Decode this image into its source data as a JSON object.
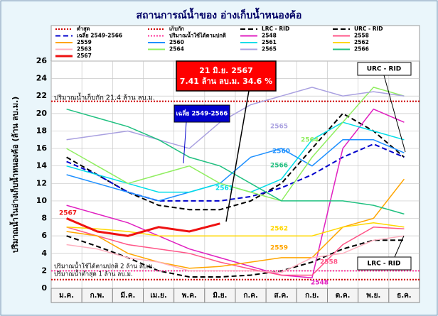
{
  "chart_data": {
    "type": "line",
    "title": "สถานการณ์น้ำของ อ่างเก็บน้ำหนองค้อ",
    "y_label": "ปริมาณน้ำในอ่างเก็บน้ำหนองค้อ (ล้าน ลบ.ม.)",
    "categories": [
      "ม.ค.",
      "ก.พ.",
      "มี.ค.",
      "เม.ย.",
      "พ.ค.",
      "มิ.ย.",
      "ก.ค.",
      "ส.ค.",
      "ก.ย.",
      "ต.ค.",
      "พ.ย.",
      "ธ.ค."
    ],
    "ylim": [
      0,
      26
    ],
    "yticks": [
      0,
      2,
      4,
      6,
      8,
      10,
      12,
      14,
      16,
      18,
      20,
      22,
      24,
      26
    ],
    "grid": true,
    "series": [
      {
        "name": "ต่ำสุด",
        "color": "#cc0000",
        "dash": "dotted",
        "value": 1
      },
      {
        "name": "เก็บกัก",
        "color": "#cc0000",
        "dash": "dotted",
        "value": 21.4
      },
      {
        "name": "LRC - RID",
        "color": "#000000",
        "dash": "dashed",
        "values": [
          6,
          4.8,
          3.5,
          2,
          1.3,
          1.3,
          1.5,
          2,
          3,
          4.5,
          5.5,
          5.5
        ]
      },
      {
        "name": "URC - RID",
        "color": "#000000",
        "dash": "dashed",
        "values": [
          15,
          13,
          11,
          9.5,
          9,
          9,
          10,
          12,
          16,
          20,
          18,
          15
        ]
      },
      {
        "name": "เฉลี่ย 2549-2566",
        "color": "#0000cc",
        "dash": "dashed",
        "values": [
          14.5,
          13,
          11,
          10,
          10,
          10,
          10.5,
          11.5,
          13,
          15,
          16.5,
          15
        ]
      },
      {
        "name": "ปริมาณน้ำใช้ได้ตามปกติ",
        "color": "#ff3399",
        "dash": "dotted",
        "value": 2
      },
      {
        "name": "2548",
        "color": "#e020c0",
        "values": [
          9.5,
          8.5,
          7.5,
          6,
          4.5,
          3.5,
          2.5,
          1.5,
          1.2,
          16,
          20.5,
          19
        ]
      },
      {
        "name": "2558",
        "color": "#ff5588",
        "values": [
          7,
          6,
          5,
          4.5,
          4,
          3,
          2.2,
          1.5,
          1.5,
          5,
          7,
          6.8
        ]
      },
      {
        "name": "2559",
        "color": "#ffa500",
        "values": [
          6.5,
          6,
          4,
          3,
          2.3,
          2.5,
          3,
          3.5,
          3.5,
          7,
          8,
          12.5
        ]
      },
      {
        "name": "2560",
        "color": "#1e90ff",
        "values": [
          13,
          12,
          11,
          10,
          11,
          12,
          15,
          16,
          14,
          17,
          17,
          15.5
        ]
      },
      {
        "name": "2561",
        "color": "#00dde8",
        "values": [
          14,
          13,
          12,
          11,
          11,
          12,
          11,
          12.5,
          17,
          19,
          18,
          17
        ]
      },
      {
        "name": "2562",
        "color": "#ffd700",
        "values": [
          7,
          6.8,
          6.5,
          6,
          6,
          6,
          6,
          6,
          6,
          7,
          7.5,
          7
        ]
      },
      {
        "name": "2563",
        "color": "#ffb0c0",
        "values": [
          5,
          4.5,
          3.5,
          3,
          2,
          2,
          2,
          1.8,
          3.5,
          4,
          5.5,
          6
        ]
      },
      {
        "name": "2564",
        "color": "#90ee60",
        "values": [
          16,
          14,
          12,
          13,
          14,
          12,
          11,
          10,
          15,
          19,
          23,
          22
        ]
      },
      {
        "name": "2565",
        "color": "#a9a0e0",
        "values": [
          17,
          17.5,
          18,
          17,
          16,
          19,
          21,
          22,
          23,
          22,
          22.5,
          22
        ]
      },
      {
        "name": "2566",
        "color": "#20c080",
        "values": [
          20.5,
          19.5,
          18.5,
          17,
          15,
          14,
          12,
          10,
          10,
          10,
          9.5,
          8.5
        ]
      },
      {
        "name": "2567",
        "color": "#ee1111",
        "width": 3,
        "values": [
          8,
          6.5,
          6,
          7,
          6.5,
          7.41,
          null,
          null,
          null,
          null,
          null,
          null
        ]
      }
    ],
    "annotations": {
      "callout_date": "21 มิ.ย. 2567",
      "callout_value": "7.41 ล้าน ลบ.ม. 34.6 %",
      "storage_label": "ปริมาณน้ำเก็บกัก 21.4 ล้าน ลบ.ม.",
      "usable_label": "ปริมาณน้ำใช้ได้ตามปกติ 2 ล้าน ลบ.ม.",
      "min_label": "ปริมาณน้ำต่ำสุด 1 ล้าน ลบ.ม.",
      "avg_box": "เฉลี่ย 2549-2566",
      "urc_box": "URC - RID",
      "lrc_box": "LRC - RID"
    }
  }
}
